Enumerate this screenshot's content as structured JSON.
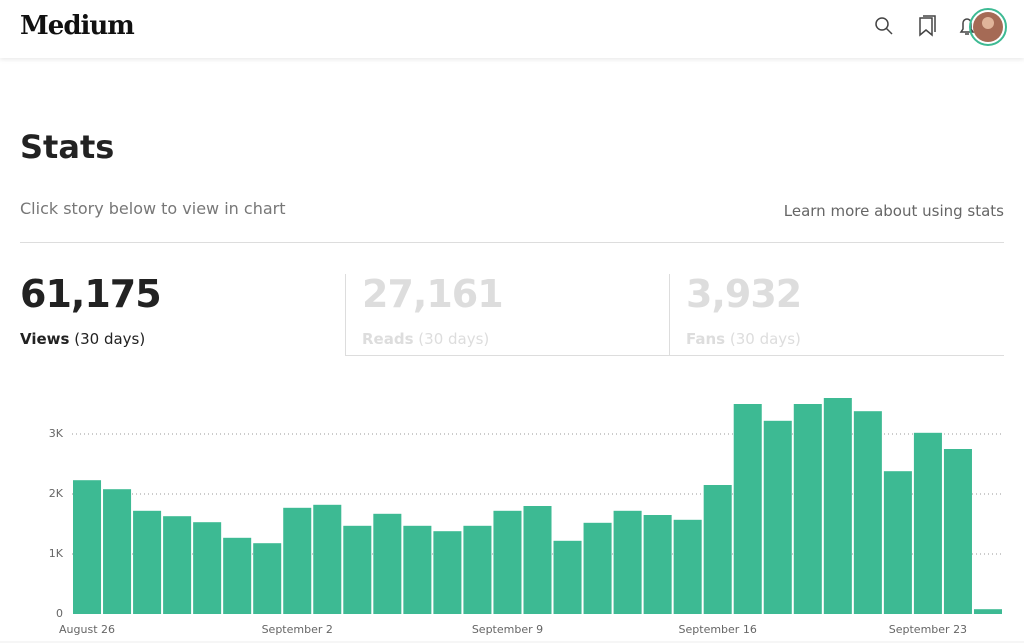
{
  "header": {
    "logo": "Medium"
  },
  "page": {
    "title": "Stats",
    "subtitle": "Click story below to view in chart",
    "help_link": "Learn more about using stats"
  },
  "stats": [
    {
      "value": "61,175",
      "label": "Views",
      "period": "(30 days)"
    },
    {
      "value": "27,161",
      "label": "Reads",
      "period": "(30 days)"
    },
    {
      "value": "3,932",
      "label": "Fans",
      "period": "(30 days)"
    }
  ],
  "chart_data": {
    "type": "bar",
    "color": "#3dba93",
    "grid": true,
    "categories": [
      "August 26",
      null,
      null,
      null,
      null,
      null,
      null,
      "September 2",
      null,
      null,
      null,
      null,
      null,
      null,
      "September 9",
      null,
      null,
      null,
      null,
      null,
      null,
      "September 16",
      null,
      null,
      null,
      null,
      null,
      null,
      "September 23",
      null,
      null
    ],
    "values": [
      2230,
      2080,
      1720,
      1630,
      1530,
      1270,
      1180,
      1770,
      1820,
      1470,
      1670,
      1470,
      1380,
      1470,
      1720,
      1800,
      1220,
      1520,
      1720,
      1650,
      1570,
      2150,
      3500,
      3220,
      3500,
      3600,
      3380,
      2380,
      3020,
      2750,
      80
    ],
    "ylim": [
      0,
      3700
    ],
    "yticks": [
      0,
      {
        "value": 1000,
        "label": "1K"
      },
      {
        "value": 2000,
        "label": "2K"
      },
      {
        "value": 3000,
        "label": "3K"
      }
    ]
  }
}
